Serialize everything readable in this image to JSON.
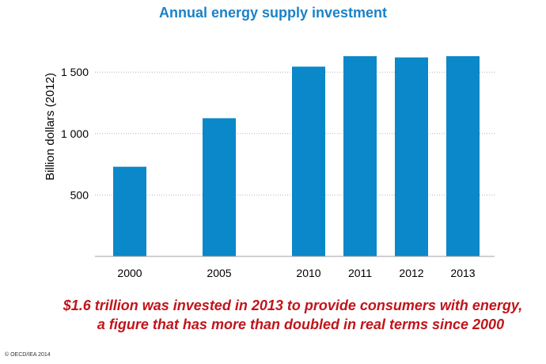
{
  "chart_data": {
    "type": "bar",
    "title": "Annual energy supply investment",
    "ylabel": "Billion dollars (2012)",
    "xlabel": "",
    "categories": [
      "2000",
      "2005",
      "2010",
      "2011",
      "2012",
      "2013"
    ],
    "values": [
      730,
      1125,
      1545,
      1630,
      1620,
      1630
    ],
    "ylim": [
      0,
      1700
    ],
    "yticks": [
      500,
      1000,
      1500
    ],
    "ytick_labels": [
      "500",
      "1 000",
      "1 500"
    ],
    "bar_color": "#0a88c9",
    "grid": "dotted horizontal",
    "legend": "none"
  },
  "caption": {
    "line1": "$1.6 trillion was invested in 2013 to provide consumers with energy,",
    "line2": "a figure that has more than doubled in real terms since 2000"
  },
  "copyright": "© OECD/IEA 2014"
}
